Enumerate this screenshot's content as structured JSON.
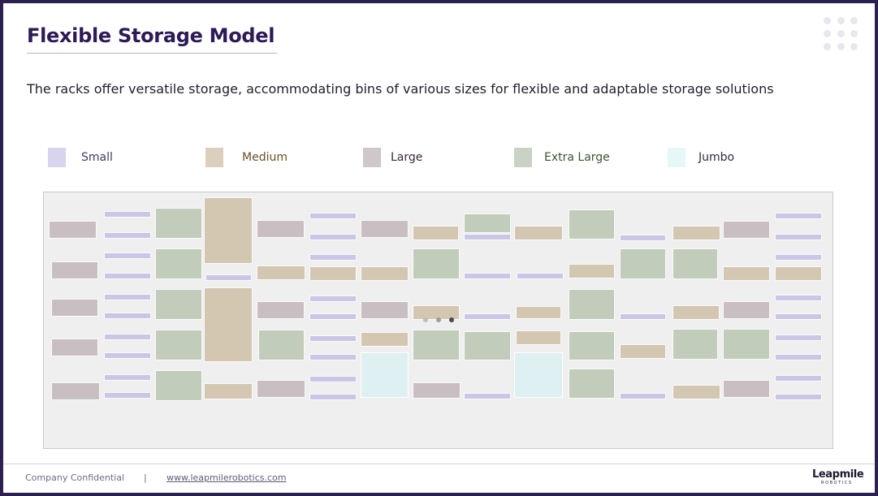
{
  "slide": {
    "title": "Flexible Storage Model",
    "subtitle": "The racks offer versatile storage, accommodating bins of various sizes for flexible and adaptable storage solutions"
  },
  "legend": [
    {
      "key": "small",
      "label": "Small",
      "swatch_color": "#d8d4ee",
      "text_color": "#3e3a6b"
    },
    {
      "key": "medium",
      "label": "Medium",
      "swatch_color": "#dccfbd",
      "text_color": "#6b4f25"
    },
    {
      "key": "large",
      "label": "Large",
      "swatch_color": "#cfc7ca",
      "text_color": "#3a2a3a"
    },
    {
      "key": "xlarge",
      "label": "Extra Large",
      "swatch_color": "#c9d3c5",
      "text_color": "#3b5530"
    },
    {
      "key": "jumbo",
      "label": "Jumbo",
      "swatch_color": "#e6f7f8",
      "text_color": "#2b2b40"
    }
  ],
  "bin_colors": {
    "small": "#cbc6e6",
    "medium": "#d4c7b2",
    "large": "#c9bfc2",
    "xlarge": "#c1ccbb",
    "jumbo": "#dff0f2"
  },
  "footer": {
    "confidential": "Company Confidential",
    "separator": "|",
    "website": "www.leapmilerobotics.com"
  },
  "logo": {
    "name": "Leapmile",
    "tagline": "ROBOTICS"
  },
  "loader_colors": [
    "#bdbdbd",
    "#9e9e9e",
    "#4a4a4a"
  ]
}
